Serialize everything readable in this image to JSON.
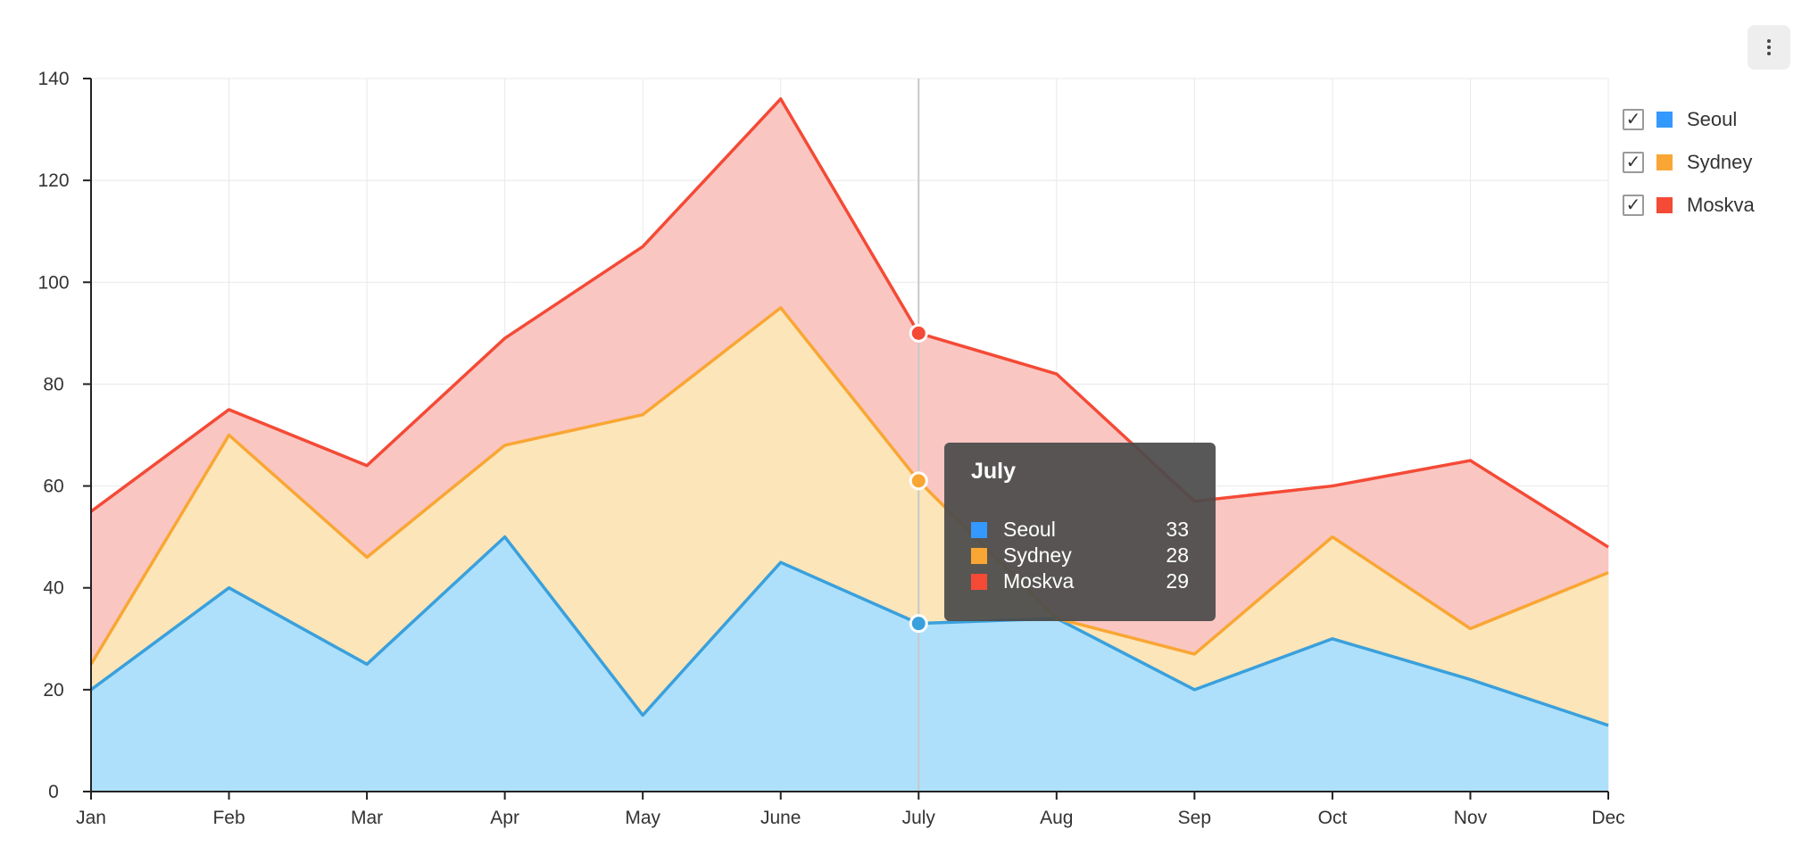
{
  "chart_data": {
    "type": "area",
    "stacked": true,
    "categories": [
      "Jan",
      "Feb",
      "Mar",
      "Apr",
      "May",
      "June",
      "July",
      "Aug",
      "Sep",
      "Oct",
      "Nov",
      "Dec"
    ],
    "series": [
      {
        "name": "Seoul",
        "color": "#3399ff",
        "line_color": "#3aa0dc",
        "fill_color": "#aee0fc",
        "values": [
          20,
          40,
          25,
          50,
          15,
          45,
          33,
          34,
          20,
          30,
          22,
          13
        ]
      },
      {
        "name": "Sydney",
        "color": "#f9a634",
        "line_color": "#f9a634",
        "fill_color": "#fce5b8",
        "values": [
          5,
          30,
          21,
          18,
          59,
          50,
          28,
          0,
          7,
          20,
          10,
          30
        ]
      },
      {
        "name": "Moskva",
        "color": "#f44a36",
        "line_color": "#f44a36",
        "fill_color": "#fac6c2",
        "values": [
          30,
          5,
          18,
          21,
          33,
          41,
          29,
          48,
          30,
          10,
          33,
          5
        ]
      }
    ],
    "ylim": [
      0,
      140
    ],
    "yticks": [
      0,
      20,
      40,
      60,
      80,
      100,
      120,
      140
    ],
    "grid": true,
    "legend_position": "right",
    "highlighted_category": "July"
  },
  "legend": {
    "items": [
      {
        "label": "Seoul",
        "color": "#3399ff",
        "checked_mark": "✓"
      },
      {
        "label": "Sydney",
        "color": "#f9a634",
        "checked_mark": "✓"
      },
      {
        "label": "Moskva",
        "color": "#f44a36",
        "checked_mark": "✓"
      }
    ]
  },
  "tooltip": {
    "title": "July",
    "rows": [
      {
        "label": "Seoul",
        "value": "33",
        "color": "#3399ff"
      },
      {
        "label": "Sydney",
        "value": "28",
        "color": "#f9a634"
      },
      {
        "label": "Moskva",
        "value": "29",
        "color": "#f44a36"
      }
    ]
  },
  "menu": {
    "icon": "more-vertical-icon"
  }
}
